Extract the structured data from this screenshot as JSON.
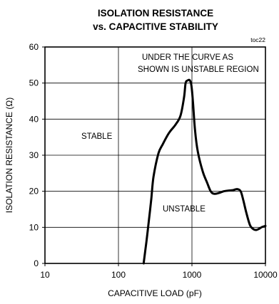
{
  "chart_data": {
    "type": "line",
    "title_line1": "ISOLATION RESISTANCE",
    "title_line2": "vs. CAPACITIVE STABILITY",
    "tag": "toc22",
    "xlabel": "CAPACITIVE LOAD (pF)",
    "ylabel": "ISOLATION RESISTANCE (Ω)",
    "x_scale": "log",
    "xlim": [
      10,
      10000
    ],
    "ylim": [
      0,
      60
    ],
    "x_ticks": [
      10,
      100,
      1000,
      10000
    ],
    "x_tick_labels": [
      "10",
      "100",
      "1000",
      "10000"
    ],
    "y_ticks": [
      0,
      10,
      20,
      30,
      40,
      50,
      60
    ],
    "y_tick_labels": [
      "0",
      "10",
      "20",
      "30",
      "40",
      "50",
      "60"
    ],
    "grid": true,
    "annotations": {
      "stable": "STABLE",
      "unstable": "UNSTABLE",
      "region_line1": "UNDER THE CURVE AS",
      "region_line2": "SHOWN IS UNSTABLE REGION"
    },
    "series": [
      {
        "x": [
          220,
          240,
          260,
          280,
          300,
          350,
          400,
          450,
          500,
          600,
          700,
          780,
          820,
          870,
          930,
          980,
          1030,
          1100,
          1200,
          1400,
          1600,
          1800,
          2000,
          2300,
          2700,
          3100,
          3600,
          4100,
          4600,
          5000,
          5500,
          6200,
          7000,
          7600,
          8200,
          9000,
          10000
        ],
        "y": [
          0,
          6,
          12,
          18,
          24,
          30.5,
          33,
          35,
          36.5,
          38.5,
          41,
          46,
          50,
          50.7,
          50.8,
          49.5,
          45,
          37,
          31,
          25.5,
          22.5,
          20,
          19.3,
          19.5,
          20,
          20.2,
          20.3,
          20.6,
          20,
          17.5,
          14,
          10.5,
          9.4,
          9.3,
          9.6,
          10.1,
          10.4
        ]
      }
    ]
  }
}
